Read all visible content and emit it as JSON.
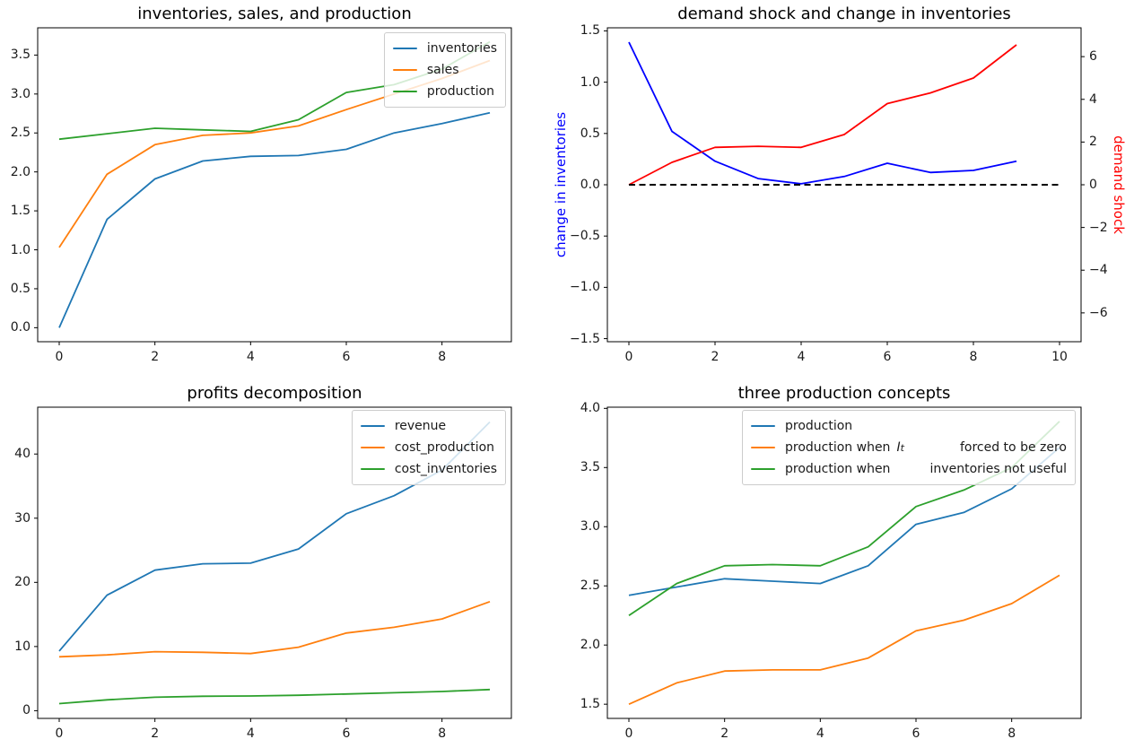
{
  "figure": {
    "background": "#ffffff"
  },
  "colors": {
    "mpl_blue": "#1f77b4",
    "mpl_orange": "#ff7f0e",
    "mpl_green": "#2ca02c",
    "pure_blue": "#0000ff",
    "pure_red": "#ff0000",
    "black": "#000000"
  },
  "chart_data": [
    {
      "type": "line",
      "title": "inventories, sales, and production",
      "x": [
        0,
        1,
        2,
        3,
        4,
        5,
        6,
        7,
        8,
        9
      ],
      "xlim": [
        -0.45,
        9.45
      ],
      "ylim": [
        -0.18,
        3.85
      ],
      "grid": false,
      "xticks": {
        "values": [
          0,
          2,
          4,
          6,
          8
        ],
        "labels": [
          "0",
          "2",
          "4",
          "6",
          "8"
        ]
      },
      "yticks": {
        "values": [
          0,
          0.5,
          1,
          1.5,
          2,
          2.5,
          3,
          3.5
        ],
        "labels": [
          "0.0",
          "0.5",
          "1.0",
          "1.5",
          "2.0",
          "2.5",
          "3.0",
          "3.5"
        ]
      },
      "legend": {
        "position": "upper right",
        "entries": [
          "inventories",
          "sales",
          "production"
        ]
      },
      "series": [
        {
          "name": "inventories",
          "color": "#1f77b4",
          "values": [
            0.0,
            1.39,
            1.91,
            2.14,
            2.2,
            2.21,
            2.29,
            2.5,
            2.62,
            2.76
          ]
        },
        {
          "name": "sales",
          "color": "#ff7f0e",
          "values": [
            1.03,
            1.97,
            2.35,
            2.47,
            2.5,
            2.59,
            2.8,
            3.0,
            3.2,
            3.43
          ]
        },
        {
          "name": "production",
          "color": "#2ca02c",
          "values": [
            2.42,
            2.49,
            2.56,
            2.54,
            2.52,
            2.67,
            3.02,
            3.12,
            3.32,
            3.67
          ]
        }
      ]
    },
    {
      "type": "line",
      "title": "demand shock and change in inventories",
      "x": [
        0,
        1,
        2,
        3,
        4,
        5,
        6,
        7,
        8,
        9
      ],
      "xlim": [
        -0.5,
        10.5
      ],
      "ylim": [
        -1.53,
        1.53
      ],
      "ylim_right": [
        -7.35,
        7.35
      ],
      "grid": false,
      "ylabel": "change in inventories",
      "ylabel_color": "#0000ff",
      "ylabel_right": "demand shock",
      "ylabel_right_color": "#ff0000",
      "xticks": {
        "values": [
          0,
          2,
          4,
          6,
          8,
          10
        ],
        "labels": [
          "0",
          "2",
          "4",
          "6",
          "8",
          "10"
        ]
      },
      "yticks": {
        "values": [
          -1.5,
          -1,
          -0.5,
          0,
          0.5,
          1,
          1.5
        ],
        "labels": [
          "−1.5",
          "−1.0",
          "−0.5",
          "0.0",
          "0.5",
          "1.0",
          "1.5"
        ]
      },
      "yticks_right": {
        "values": [
          -6,
          -4,
          -2,
          0,
          2,
          4,
          6
        ],
        "labels": [
          "−6",
          "−4",
          "−2",
          "0",
          "2",
          "4",
          "6"
        ]
      },
      "series": [
        {
          "name": "change in inventories",
          "color": "#0000ff",
          "values": [
            1.39,
            0.52,
            0.23,
            0.06,
            0.01,
            0.08,
            0.21,
            0.12,
            0.14,
            0.23
          ]
        },
        {
          "name": "demand shock",
          "axis": "right",
          "color": "#ff0000",
          "values": [
            0,
            1.05,
            1.75,
            1.8,
            1.75,
            2.35,
            3.8,
            4.3,
            5.0,
            6.55
          ]
        },
        {
          "name": "zero line",
          "color": "#000000",
          "dashed": true,
          "x": [
            0,
            10
          ],
          "values": [
            0,
            0
          ]
        }
      ]
    },
    {
      "type": "line",
      "title": "profits decomposition",
      "x": [
        0,
        1,
        2,
        3,
        4,
        5,
        6,
        7,
        8,
        9
      ],
      "xlim": [
        -0.45,
        9.45
      ],
      "ylim": [
        -1.2,
        47.3
      ],
      "grid": false,
      "xticks": {
        "values": [
          0,
          2,
          4,
          6,
          8
        ],
        "labels": [
          "0",
          "2",
          "4",
          "6",
          "8"
        ]
      },
      "yticks": {
        "values": [
          0,
          10,
          20,
          30,
          40
        ],
        "labels": [
          "0",
          "10",
          "20",
          "30",
          "40"
        ]
      },
      "legend": {
        "position": "upper right",
        "entries": [
          "revenue",
          "cost_production",
          "cost_inventories"
        ]
      },
      "series": [
        {
          "name": "revenue",
          "color": "#1f77b4",
          "values": [
            9.3,
            18.0,
            21.9,
            22.9,
            23.0,
            25.2,
            30.7,
            33.5,
            37.5,
            45.0
          ]
        },
        {
          "name": "cost_production",
          "color": "#ff7f0e",
          "values": [
            8.4,
            8.7,
            9.2,
            9.1,
            8.9,
            9.9,
            12.1,
            13.0,
            14.3,
            17.0
          ]
        },
        {
          "name": "cost_inventories",
          "color": "#2ca02c",
          "values": [
            1.1,
            1.7,
            2.1,
            2.25,
            2.3,
            2.4,
            2.6,
            2.8,
            3.0,
            3.3
          ]
        }
      ]
    },
    {
      "type": "line",
      "title": "three production concepts",
      "x": [
        0,
        1,
        2,
        3,
        4,
        5,
        6,
        7,
        8,
        9
      ],
      "xlim": [
        -0.45,
        9.45
      ],
      "ylim": [
        1.38,
        4.01
      ],
      "grid": false,
      "xticks": {
        "values": [
          0,
          2,
          4,
          6,
          8
        ],
        "labels": [
          "0",
          "2",
          "4",
          "6",
          "8"
        ]
      },
      "yticks": {
        "values": [
          1.5,
          2,
          2.5,
          3,
          3.5,
          4
        ],
        "labels": [
          "1.5",
          "2.0",
          "2.5",
          "3.0",
          "3.5",
          "4.0"
        ]
      },
      "legend": {
        "position": "upper center",
        "entries": [
          {
            "label": "production"
          },
          {
            "pre": "production when",
            "math_var": "I",
            "math_sub": "t",
            "post": "forced to be zero"
          },
          {
            "pre": "production when",
            "post": "inventories not useful"
          }
        ]
      },
      "series": [
        {
          "name": "production",
          "color": "#1f77b4",
          "values": [
            2.42,
            2.49,
            2.56,
            2.54,
            2.52,
            2.67,
            3.02,
            3.12,
            3.32,
            3.67
          ]
        },
        {
          "name": "production when I_t forced to be zero",
          "color": "#ff7f0e",
          "values": [
            1.5,
            1.68,
            1.78,
            1.79,
            1.79,
            1.89,
            2.12,
            2.21,
            2.35,
            2.59
          ]
        },
        {
          "name": "production when inventories not useful",
          "color": "#2ca02c",
          "values": [
            2.25,
            2.52,
            2.67,
            2.68,
            2.67,
            2.83,
            3.17,
            3.31,
            3.5,
            3.89
          ]
        }
      ]
    }
  ]
}
